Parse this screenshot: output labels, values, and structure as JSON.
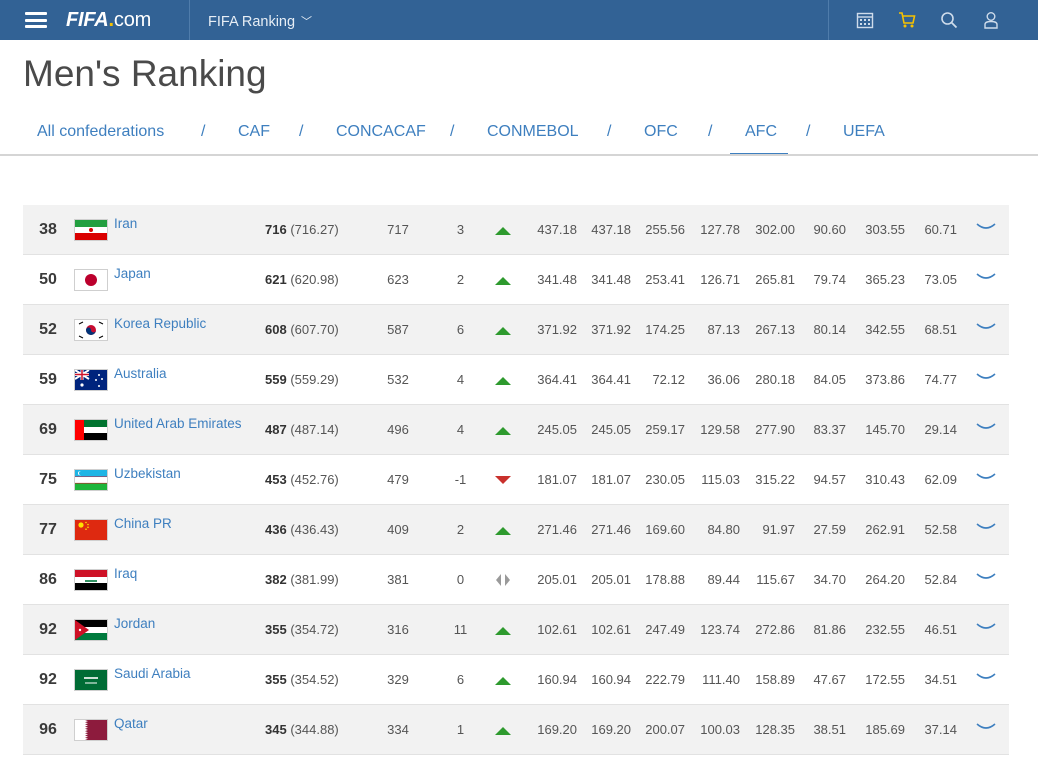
{
  "header": {
    "logo_main": "FIFA",
    "logo_dot": ".",
    "logo_com": "com",
    "section": "FIFA Ranking",
    "icons": [
      "calendar-icon",
      "cart-icon",
      "search-icon",
      "user-icon"
    ]
  },
  "page": {
    "title": "Men's Ranking"
  },
  "tabs": [
    {
      "label": "All confederations",
      "active": false
    },
    {
      "label": "CAF",
      "active": false
    },
    {
      "label": "CONCACAF",
      "active": false
    },
    {
      "label": "CONMEBOL",
      "active": false
    },
    {
      "label": "OFC",
      "active": false
    },
    {
      "label": "AFC",
      "active": true
    },
    {
      "label": "UEFA",
      "active": false
    }
  ],
  "tab_separator": "/",
  "colors": {
    "header_bg": "#326295",
    "link": "#3e7fbf",
    "up": "#2e9a2e",
    "down": "#c9302c",
    "neutral": "#9a9a9a"
  },
  "rows": [
    {
      "rank": "38",
      "flag": "iran-flag",
      "team": "Iran",
      "points": "716",
      "points_exact": "(716.27)",
      "prev": "717",
      "change": "3",
      "movement": "up",
      "cols": [
        "437.18",
        "437.18",
        "255.56",
        "127.78",
        "302.00",
        "90.60",
        "303.55",
        "60.71"
      ]
    },
    {
      "rank": "50",
      "flag": "japan-flag",
      "team": "Japan",
      "points": "621",
      "points_exact": "(620.98)",
      "prev": "623",
      "change": "2",
      "movement": "up",
      "cols": [
        "341.48",
        "341.48",
        "253.41",
        "126.71",
        "265.81",
        "79.74",
        "365.23",
        "73.05"
      ]
    },
    {
      "rank": "52",
      "flag": "korea-flag",
      "team": "Korea Republic",
      "points": "608",
      "points_exact": "(607.70)",
      "prev": "587",
      "change": "6",
      "movement": "up",
      "cols": [
        "371.92",
        "371.92",
        "174.25",
        "87.13",
        "267.13",
        "80.14",
        "342.55",
        "68.51"
      ]
    },
    {
      "rank": "59",
      "flag": "australia-flag",
      "team": "Australia",
      "points": "559",
      "points_exact": "(559.29)",
      "prev": "532",
      "change": "4",
      "movement": "up",
      "cols": [
        "364.41",
        "364.41",
        "72.12",
        "36.06",
        "280.18",
        "84.05",
        "373.86",
        "74.77"
      ]
    },
    {
      "rank": "69",
      "flag": "uae-flag",
      "team": "United Arab Emirates",
      "points": "487",
      "points_exact": "(487.14)",
      "prev": "496",
      "change": "4",
      "movement": "up",
      "cols": [
        "245.05",
        "245.05",
        "259.17",
        "129.58",
        "277.90",
        "83.37",
        "145.70",
        "29.14"
      ]
    },
    {
      "rank": "75",
      "flag": "uzbekistan-flag",
      "team": "Uzbekistan",
      "points": "453",
      "points_exact": "(452.76)",
      "prev": "479",
      "change": "-1",
      "movement": "down",
      "cols": [
        "181.07",
        "181.07",
        "230.05",
        "115.03",
        "315.22",
        "94.57",
        "310.43",
        "62.09"
      ]
    },
    {
      "rank": "77",
      "flag": "china-flag",
      "team": "China PR",
      "points": "436",
      "points_exact": "(436.43)",
      "prev": "409",
      "change": "2",
      "movement": "up",
      "cols": [
        "271.46",
        "271.46",
        "169.60",
        "84.80",
        "91.97",
        "27.59",
        "262.91",
        "52.58"
      ]
    },
    {
      "rank": "86",
      "flag": "iraq-flag",
      "team": "Iraq",
      "points": "382",
      "points_exact": "(381.99)",
      "prev": "381",
      "change": "0",
      "movement": "same",
      "cols": [
        "205.01",
        "205.01",
        "178.88",
        "89.44",
        "115.67",
        "34.70",
        "264.20",
        "52.84"
      ]
    },
    {
      "rank": "92",
      "flag": "jordan-flag",
      "team": "Jordan",
      "points": "355",
      "points_exact": "(354.72)",
      "prev": "316",
      "change": "11",
      "movement": "up",
      "cols": [
        "102.61",
        "102.61",
        "247.49",
        "123.74",
        "272.86",
        "81.86",
        "232.55",
        "46.51"
      ]
    },
    {
      "rank": "92",
      "flag": "saudi-flag",
      "team": "Saudi Arabia",
      "points": "355",
      "points_exact": "(354.52)",
      "prev": "329",
      "change": "6",
      "movement": "up",
      "cols": [
        "160.94",
        "160.94",
        "222.79",
        "111.40",
        "158.89",
        "47.67",
        "172.55",
        "34.51"
      ]
    },
    {
      "rank": "96",
      "flag": "qatar-flag",
      "team": "Qatar",
      "points": "345",
      "points_exact": "(344.88)",
      "prev": "334",
      "change": "1",
      "movement": "up",
      "cols": [
        "169.20",
        "169.20",
        "200.07",
        "100.03",
        "128.35",
        "38.51",
        "185.69",
        "37.14"
      ]
    }
  ]
}
